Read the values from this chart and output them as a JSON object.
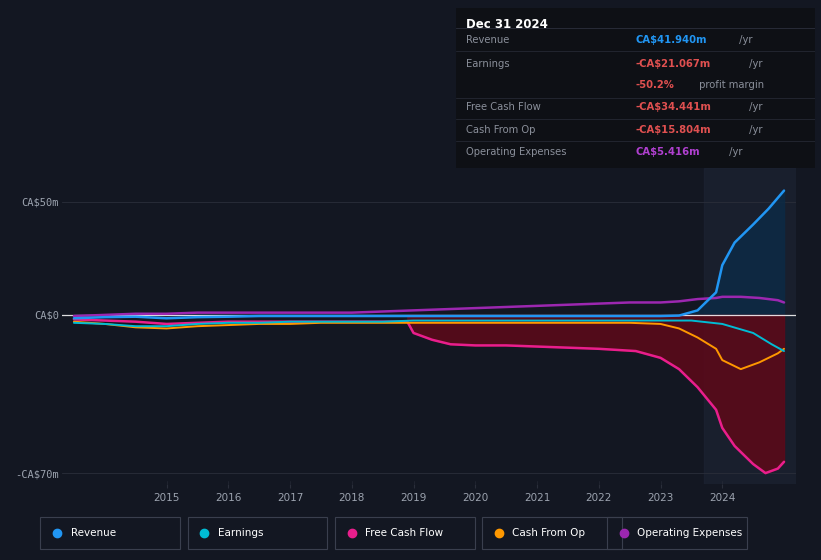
{
  "bg_color": "#131722",
  "plot_bg_color": "#131722",
  "info_bg": "#0e1015",
  "ylim": [
    -75,
    65
  ],
  "ytick_positions": [
    -70,
    0,
    50
  ],
  "ytick_labels": [
    "-CA$70m",
    "CA$0",
    "CA$50m"
  ],
  "xlabel_years": [
    2015,
    2016,
    2017,
    2018,
    2019,
    2020,
    2021,
    2022,
    2023,
    2024
  ],
  "xlim_start": 2013.3,
  "xlim_end": 2025.2,
  "highlight_x": 2023.7,
  "grid_color": "#2a2e3a",
  "text_color": "#9ca3af",
  "zero_line_color": "#ffffff",
  "series": {
    "Revenue": {
      "color": "#2196f3",
      "fill_color": "#0d2a45",
      "x": [
        2013.5,
        2014.0,
        2014.5,
        2015.0,
        2015.5,
        2016.0,
        2016.5,
        2017.0,
        2017.5,
        2018.0,
        2018.5,
        2019.0,
        2019.5,
        2020.0,
        2020.5,
        2021.0,
        2021.5,
        2022.0,
        2022.5,
        2023.0,
        2023.3,
        2023.6,
        2023.9,
        2024.0,
        2024.2,
        2024.5,
        2024.75,
        2025.0
      ],
      "y": [
        -1.5,
        -1.0,
        -0.8,
        -1.5,
        -1.0,
        -0.8,
        -0.5,
        -0.5,
        -0.5,
        -0.5,
        -0.5,
        -0.5,
        -0.5,
        -0.5,
        -0.5,
        -0.5,
        -0.5,
        -0.5,
        -0.5,
        -0.5,
        -0.3,
        2.0,
        10.0,
        22.0,
        32.0,
        40.0,
        47.0,
        55.0
      ]
    },
    "Earnings": {
      "color": "#00bcd4",
      "x": [
        2013.5,
        2014.0,
        2014.5,
        2015.0,
        2015.5,
        2016.0,
        2016.5,
        2017.0,
        2017.5,
        2018.0,
        2018.5,
        2019.0,
        2019.5,
        2020.0,
        2020.5,
        2021.0,
        2021.5,
        2022.0,
        2022.5,
        2023.0,
        2023.5,
        2024.0,
        2024.5,
        2024.8,
        2025.0
      ],
      "y": [
        -3.5,
        -4.0,
        -5.0,
        -5.0,
        -4.0,
        -3.5,
        -3.5,
        -3.0,
        -3.0,
        -3.0,
        -3.0,
        -2.5,
        -2.5,
        -2.5,
        -2.5,
        -2.5,
        -2.5,
        -2.5,
        -2.5,
        -2.5,
        -2.5,
        -4.0,
        -8.0,
        -13.0,
        -16.0
      ]
    },
    "FreeCashFlow": {
      "color": "#e91e8c",
      "fill_color": "#5a0a1a",
      "x": [
        2013.5,
        2014.0,
        2014.5,
        2015.0,
        2015.5,
        2016.0,
        2016.5,
        2017.0,
        2017.5,
        2018.0,
        2018.5,
        2018.9,
        2019.0,
        2019.3,
        2019.6,
        2020.0,
        2020.5,
        2021.0,
        2021.5,
        2022.0,
        2022.3,
        2022.6,
        2023.0,
        2023.3,
        2023.6,
        2023.9,
        2024.0,
        2024.2,
        2024.5,
        2024.7,
        2024.9,
        2025.0
      ],
      "y": [
        -2.0,
        -2.5,
        -3.0,
        -4.0,
        -3.5,
        -3.0,
        -3.0,
        -3.0,
        -3.0,
        -3.0,
        -3.0,
        -3.0,
        -8.0,
        -11.0,
        -13.0,
        -13.5,
        -13.5,
        -14.0,
        -14.5,
        -15.0,
        -15.5,
        -16.0,
        -19.0,
        -24.0,
        -32.0,
        -42.0,
        -50.0,
        -58.0,
        -66.0,
        -70.0,
        -68.0,
        -65.0
      ]
    },
    "CashFromOp": {
      "color": "#ff9800",
      "x": [
        2013.5,
        2014.0,
        2014.5,
        2015.0,
        2015.5,
        2016.0,
        2016.5,
        2017.0,
        2017.5,
        2018.0,
        2018.5,
        2019.0,
        2019.5,
        2020.0,
        2020.5,
        2021.0,
        2021.5,
        2022.0,
        2022.5,
        2023.0,
        2023.3,
        2023.6,
        2023.9,
        2024.0,
        2024.3,
        2024.6,
        2024.9,
        2025.0
      ],
      "y": [
        -3.0,
        -4.0,
        -5.5,
        -6.0,
        -5.0,
        -4.5,
        -4.0,
        -4.0,
        -3.5,
        -3.5,
        -3.5,
        -3.5,
        -3.5,
        -3.5,
        -3.5,
        -3.5,
        -3.5,
        -3.5,
        -3.5,
        -4.0,
        -6.0,
        -10.0,
        -15.0,
        -20.0,
        -24.0,
        -21.0,
        -17.0,
        -15.0
      ]
    },
    "OperatingExpenses": {
      "color": "#9c27b0",
      "x": [
        2013.5,
        2014.0,
        2014.5,
        2015.0,
        2015.5,
        2016.0,
        2016.5,
        2017.0,
        2017.5,
        2018.0,
        2018.5,
        2019.0,
        2019.5,
        2020.0,
        2020.5,
        2021.0,
        2021.5,
        2022.0,
        2022.5,
        2023.0,
        2023.3,
        2023.6,
        2023.9,
        2024.0,
        2024.3,
        2024.6,
        2024.9,
        2025.0
      ],
      "y": [
        -0.5,
        0.0,
        0.5,
        0.5,
        1.0,
        1.0,
        1.0,
        1.0,
        1.0,
        1.0,
        1.5,
        2.0,
        2.5,
        3.0,
        3.5,
        4.0,
        4.5,
        5.0,
        5.5,
        5.5,
        6.0,
        7.0,
        7.5,
        8.0,
        8.0,
        7.5,
        6.5,
        5.5
      ]
    }
  },
  "info_box": {
    "date": "Dec 31 2024",
    "rows": [
      {
        "label": "Revenue",
        "value": "CA$41.940m",
        "suffix": " /yr",
        "value_color": "#2196f3"
      },
      {
        "label": "Earnings",
        "value": "-CA$21.067m",
        "suffix": " /yr",
        "value_color": "#e05050"
      },
      {
        "label": "",
        "value": "-50.2%",
        "suffix": " profit margin",
        "value_color": "#e05050"
      },
      {
        "label": "Free Cash Flow",
        "value": "-CA$34.441m",
        "suffix": " /yr",
        "value_color": "#e05050"
      },
      {
        "label": "Cash From Op",
        "value": "-CA$15.804m",
        "suffix": " /yr",
        "value_color": "#e05050"
      },
      {
        "label": "Operating Expenses",
        "value": "CA$5.416m",
        "suffix": " /yr",
        "value_color": "#b040d0"
      }
    ]
  },
  "legend": [
    {
      "label": "Revenue",
      "color": "#2196f3"
    },
    {
      "label": "Earnings",
      "color": "#00bcd4"
    },
    {
      "label": "Free Cash Flow",
      "color": "#e91e8c"
    },
    {
      "label": "Cash From Op",
      "color": "#ff9800"
    },
    {
      "label": "Operating Expenses",
      "color": "#9c27b0"
    }
  ]
}
